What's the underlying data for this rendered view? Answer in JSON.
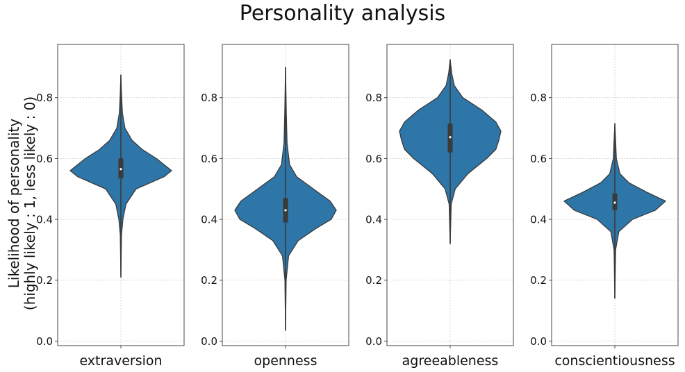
{
  "chart_data": {
    "type": "violin",
    "title": "Personality analysis",
    "ylabel_line1": "Likelihood of personality",
    "ylabel_line2": "(highly likely : 1, less likely : 0)",
    "ylim": [
      -0.015,
      0.975
    ],
    "yticks": [
      0.0,
      0.2,
      0.4,
      0.6,
      0.8
    ],
    "ytick_labels": [
      "0.0",
      "0.2",
      "0.4",
      "0.6",
      "0.8"
    ],
    "grid": true,
    "color": "#2e75a8",
    "panels": [
      {
        "category": "extraversion",
        "min": 0.21,
        "max": 0.875,
        "q1": 0.535,
        "median": 0.565,
        "q3": 0.6,
        "profile": [
          [
            0.21,
            0.0
          ],
          [
            0.35,
            0.012
          ],
          [
            0.4,
            0.04
          ],
          [
            0.45,
            0.1
          ],
          [
            0.5,
            0.3
          ],
          [
            0.54,
            0.85
          ],
          [
            0.56,
            1.0
          ],
          [
            0.58,
            0.85
          ],
          [
            0.6,
            0.7
          ],
          [
            0.63,
            0.42
          ],
          [
            0.66,
            0.22
          ],
          [
            0.7,
            0.08
          ],
          [
            0.75,
            0.03
          ],
          [
            0.8,
            0.015
          ],
          [
            0.875,
            0.0
          ]
        ]
      },
      {
        "category": "openness",
        "min": 0.035,
        "max": 0.9,
        "q1": 0.39,
        "median": 0.43,
        "q3": 0.47,
        "profile": [
          [
            0.035,
            0.0
          ],
          [
            0.2,
            0.012
          ],
          [
            0.28,
            0.06
          ],
          [
            0.33,
            0.25
          ],
          [
            0.37,
            0.6
          ],
          [
            0.4,
            0.9
          ],
          [
            0.43,
            1.0
          ],
          [
            0.46,
            0.88
          ],
          [
            0.5,
            0.55
          ],
          [
            0.54,
            0.22
          ],
          [
            0.58,
            0.08
          ],
          [
            0.65,
            0.03
          ],
          [
            0.75,
            0.015
          ],
          [
            0.9,
            0.0
          ]
        ]
      },
      {
        "category": "agreeableness",
        "min": 0.32,
        "max": 0.925,
        "q1": 0.62,
        "median": 0.67,
        "q3": 0.715,
        "profile": [
          [
            0.32,
            0.0
          ],
          [
            0.45,
            0.02
          ],
          [
            0.5,
            0.1
          ],
          [
            0.55,
            0.35
          ],
          [
            0.6,
            0.72
          ],
          [
            0.63,
            0.9
          ],
          [
            0.66,
            0.96
          ],
          [
            0.69,
            1.0
          ],
          [
            0.72,
            0.9
          ],
          [
            0.76,
            0.62
          ],
          [
            0.8,
            0.25
          ],
          [
            0.84,
            0.08
          ],
          [
            0.88,
            0.03
          ],
          [
            0.925,
            0.0
          ]
        ]
      },
      {
        "category": "conscientiousness",
        "min": 0.14,
        "max": 0.715,
        "q1": 0.43,
        "median": 0.455,
        "q3": 0.485,
        "profile": [
          [
            0.14,
            0.0
          ],
          [
            0.3,
            0.015
          ],
          [
            0.36,
            0.08
          ],
          [
            0.4,
            0.35
          ],
          [
            0.43,
            0.8
          ],
          [
            0.46,
            1.0
          ],
          [
            0.49,
            0.62
          ],
          [
            0.52,
            0.28
          ],
          [
            0.55,
            0.1
          ],
          [
            0.6,
            0.03
          ],
          [
            0.715,
            0.0
          ]
        ]
      }
    ]
  }
}
